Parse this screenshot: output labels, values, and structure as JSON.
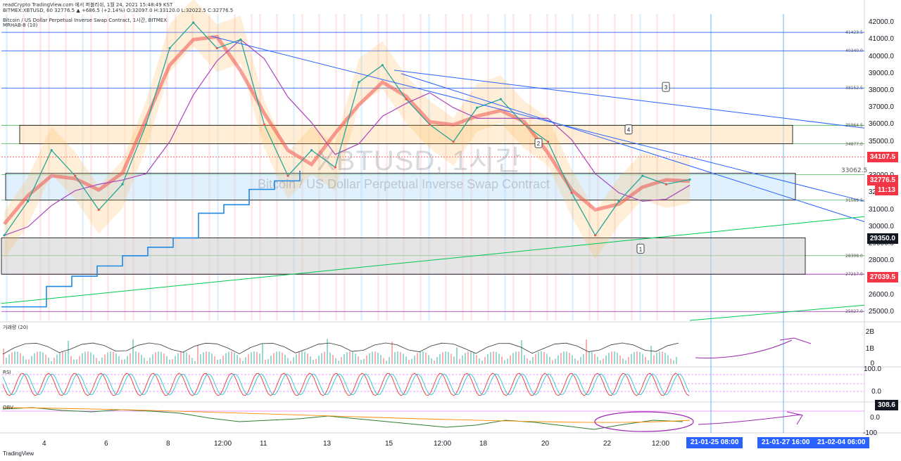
{
  "header": {
    "title_line": "readCrypto TradingView.com 에서 퍼블리쉬, 1월 24, 2021 15:48:49 KST",
    "symbol_line": "BITMEX:XBTUSD, 60  32776.5 ▲ +686.5 (+2.14%)  O:32097.0  H:33120.0  L:32022.5  C:32776.5",
    "chart_title": "Bitcoin / US Dollar Perpetual Inverse Swap Contract, 1시간, BITMEX",
    "indicator_name": "MRHAB-8 (10)"
  },
  "watermark": {
    "symbol": "XBTUSD, 1시간",
    "description": "Bitcoin / US Dollar Perpetual Inverse Swap Contract"
  },
  "chart_data": {
    "type": "line",
    "series": [
      {
        "values": [
          29500,
          31500,
          34500,
          33000,
          31000,
          32500,
          36000,
          40500,
          42000,
          40500,
          41000,
          36000,
          33000,
          34500,
          33500,
          38500,
          39500,
          37500,
          36000,
          35000,
          37000,
          37500,
          36000,
          35000,
          32000,
          29500,
          31500,
          33000,
          32500,
          32776.5
        ]
      }
    ],
    "y_range": [
      24500,
      42500
    ],
    "y_ticks": [
      "42000.0",
      "41000.0",
      "40000.0",
      "39000.0",
      "38000.0",
      "37000.0",
      "36000.0",
      "35000.0",
      "34000.0",
      "33000.0",
      "32000.0",
      "31000.0",
      "30000.0",
      "29000.0",
      "28000.0",
      "27000.0",
      "26000.0",
      "25000.0"
    ],
    "x_ticks": [
      "4",
      "6",
      "8",
      "12:00",
      "11",
      "13",
      "15",
      "12:00",
      "18",
      "20",
      "22",
      "12:00"
    ],
    "level_labels": [
      "41423.5",
      "40340.0",
      "38152.5",
      "35964.5",
      "34877.0",
      "33062.5",
      "31569.5",
      "28308.0",
      "27217.0",
      "25027.0"
    ],
    "price_tags": [
      {
        "text": "34107.5",
        "color": "#f23645"
      },
      {
        "text": "32776.5",
        "color": "#f23645"
      },
      {
        "text": "11:13",
        "color": "#f23645"
      },
      {
        "text": "29350.0",
        "color": "#131722"
      },
      {
        "text": "27039.5",
        "color": "#f23645"
      }
    ],
    "time_tags": [
      "21-01-25  08:00",
      "21-01-27  16:00",
      "21-02-04  06:00"
    ],
    "callouts": [
      "1",
      "2",
      "3",
      "4"
    ]
  },
  "panes": {
    "volume": {
      "name": "거래량 (20)",
      "ticks": [
        "2B",
        "1B",
        "0"
      ]
    },
    "oscillator": {
      "name": "RSI",
      "ticks": [
        "100.0",
        "0.0"
      ]
    },
    "obv": {
      "name": "OBV",
      "ticks": [
        "308.6",
        "0.0",
        "-100"
      ]
    }
  },
  "colors": {
    "up": "#26a69a",
    "down": "#ef5350",
    "trend_blue": "#2962ff",
    "trend_green": "#00c853",
    "box_blue": "#bbdefb",
    "box_orange": "#ffe0b2",
    "box_gray": "#cfcfcf",
    "annot_purple": "#9c27b0"
  },
  "branding": "TradingView"
}
